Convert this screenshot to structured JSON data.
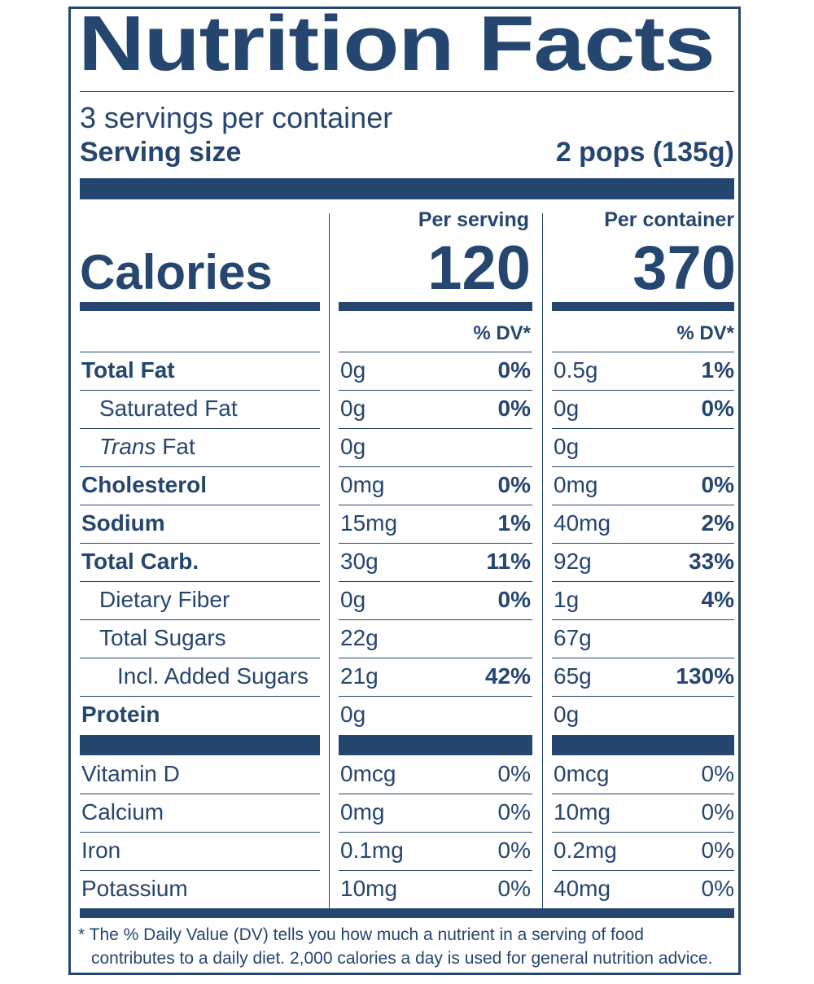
{
  "title": "Nutrition Facts",
  "servings_per_container": "3 servings per container",
  "serving_size_label": "Serving size",
  "serving_size_value": "2 pops (135g)",
  "calories_label": "Calories",
  "columns": [
    {
      "heading": "Per serving",
      "calories": "120",
      "dv_heading": "% DV*"
    },
    {
      "heading": "Per container",
      "calories": "370",
      "dv_heading": "% DV*"
    }
  ],
  "nutrients": [
    {
      "name": "Total Fat",
      "bold": true,
      "indent": 0,
      "serving": "0g",
      "serving_dv": "0%",
      "container": "0.5g",
      "container_dv": "1%"
    },
    {
      "name": "Saturated Fat",
      "bold": false,
      "indent": 1,
      "serving": "0g",
      "serving_dv": "0%",
      "container": "0g",
      "container_dv": "0%"
    },
    {
      "name_italic": "Trans",
      "name": " Fat",
      "bold": false,
      "indent": 1,
      "serving": "0g",
      "serving_dv": "",
      "container": "0g",
      "container_dv": ""
    },
    {
      "name": "Cholesterol",
      "bold": true,
      "indent": 0,
      "serving": "0mg",
      "serving_dv": "0%",
      "container": "0mg",
      "container_dv": "0%"
    },
    {
      "name": "Sodium",
      "bold": true,
      "indent": 0,
      "serving": "15mg",
      "serving_dv": "1%",
      "container": "40mg",
      "container_dv": "2%"
    },
    {
      "name": "Total Carb.",
      "bold": true,
      "indent": 0,
      "serving": "30g",
      "serving_dv": "11%",
      "container": "92g",
      "container_dv": "33%"
    },
    {
      "name": "Dietary Fiber",
      "bold": false,
      "indent": 1,
      "serving": "0g",
      "serving_dv": "0%",
      "container": "1g",
      "container_dv": "4%"
    },
    {
      "name": "Total Sugars",
      "bold": false,
      "indent": 1,
      "serving": "22g",
      "serving_dv": "",
      "container": "67g",
      "container_dv": ""
    },
    {
      "name": "Incl. Added Sugars",
      "bold": false,
      "indent": 2,
      "serving": "21g",
      "serving_dv": "42%",
      "container": "65g",
      "container_dv": "130%"
    },
    {
      "name": "Protein",
      "bold": true,
      "indent": 0,
      "serving": "0g",
      "serving_dv": "",
      "container": "0g",
      "container_dv": ""
    }
  ],
  "vitamins": [
    {
      "name": "Vitamin D",
      "serving": "0mcg",
      "serving_dv": "0%",
      "container": "0mcg",
      "container_dv": "0%"
    },
    {
      "name": "Calcium",
      "serving": "0mg",
      "serving_dv": "0%",
      "container": "10mg",
      "container_dv": "0%"
    },
    {
      "name": "Iron",
      "serving": "0.1mg",
      "serving_dv": "0%",
      "container": "0.2mg",
      "container_dv": "0%"
    },
    {
      "name": "Potassium",
      "serving": "10mg",
      "serving_dv": "0%",
      "container": "40mg",
      "container_dv": "0%"
    }
  ],
  "footnote_line1": "* The % Daily Value (DV) tells you how much a nutrient in a serving of food",
  "footnote_line2": "contributes to a daily diet. 2,000 calories a day is used for general nutrition advice.",
  "colors": {
    "ink": "#25466f",
    "background": "#ffffff"
  }
}
